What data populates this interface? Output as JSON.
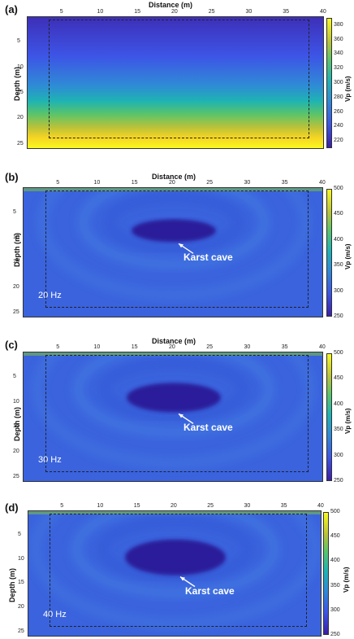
{
  "chart_data": [
    {
      "type": "heatmap",
      "panel_label": "(a)",
      "xlabel": "Distance (m)",
      "ylabel": "Depth (m)",
      "colorbar_label": "Vp (m/s)",
      "x_ticks": [
        5,
        10,
        15,
        20,
        25,
        30,
        35,
        40
      ],
      "y_ticks": [
        5,
        10,
        15,
        20,
        25
      ],
      "colorbar_ticks": [
        220,
        240,
        260,
        280,
        300,
        320,
        340,
        360,
        380
      ],
      "xlim": [
        0,
        40
      ],
      "ylim": [
        0,
        26
      ],
      "clim": [
        210,
        390
      ],
      "annotation": "",
      "frequency": "",
      "inner_region": {
        "x": [
          3,
          38
        ],
        "y": [
          0,
          24
        ]
      }
    },
    {
      "type": "heatmap",
      "panel_label": "(b)",
      "xlabel": "Distance (m)",
      "ylabel": "Depth (m)",
      "colorbar_label": "Vp (m/s)",
      "x_ticks": [
        5,
        10,
        15,
        20,
        25,
        30,
        35,
        40
      ],
      "y_ticks": [
        5,
        10,
        15,
        20,
        25
      ],
      "colorbar_ticks": [
        250,
        300,
        350,
        400,
        450,
        500
      ],
      "xlim": [
        0,
        40
      ],
      "ylim": [
        0,
        26
      ],
      "clim": [
        250,
        500
      ],
      "annotation": "Karst cave",
      "frequency": "20 Hz",
      "cave_center": {
        "x": 20,
        "y": 8.5
      },
      "inner_region": {
        "x": [
          3,
          38
        ],
        "y": [
          0,
          24
        ]
      }
    },
    {
      "type": "heatmap",
      "panel_label": "(c)",
      "xlabel": "Distance (m)",
      "ylabel": "Depth (m)",
      "colorbar_label": "Vp (m/s)",
      "x_ticks": [
        5,
        10,
        15,
        20,
        25,
        30,
        35,
        40
      ],
      "y_ticks": [
        5,
        10,
        15,
        20,
        25
      ],
      "colorbar_ticks": [
        250,
        300,
        350,
        400,
        450,
        500
      ],
      "xlim": [
        0,
        40
      ],
      "ylim": [
        0,
        26
      ],
      "clim": [
        250,
        500
      ],
      "annotation": "Karst cave",
      "frequency": "30 Hz",
      "cave_center": {
        "x": 20,
        "y": 9
      },
      "inner_region": {
        "x": [
          3,
          38
        ],
        "y": [
          0,
          24
        ]
      }
    },
    {
      "type": "heatmap",
      "panel_label": "(d)",
      "xlabel": "Distance (m)",
      "ylabel": "Depth (m)",
      "colorbar_label": "Vp (m/s)",
      "x_ticks": [
        5,
        10,
        15,
        20,
        25,
        30,
        35,
        40
      ],
      "y_ticks": [
        5,
        10,
        15,
        20,
        25
      ],
      "colorbar_ticks": [
        250,
        300,
        350,
        400,
        450,
        500
      ],
      "xlim": [
        0,
        40
      ],
      "ylim": [
        0,
        26
      ],
      "clim": [
        250,
        500
      ],
      "annotation": "Karst cave",
      "frequency": "40 Hz",
      "cave_center": {
        "x": 20,
        "y": 9.5
      },
      "inner_region": {
        "x": [
          3,
          38
        ],
        "y": [
          0,
          24
        ]
      }
    }
  ],
  "colors": {
    "background_blue": "#3a63dd",
    "cave_dark": "#2a1f9a",
    "colorbar": [
      "#3b1fa6",
      "#3d55e6",
      "#2f8ad6",
      "#1fb3b3",
      "#5ac46a",
      "#b9c23a",
      "#f6d423",
      "#f9f91f"
    ]
  }
}
